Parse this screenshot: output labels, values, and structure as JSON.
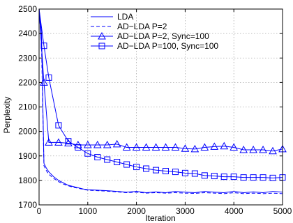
{
  "chart_data": {
    "type": "line",
    "title": "",
    "xlabel": "Iteration",
    "ylabel": "Perplexity",
    "xlim": [
      0,
      5000
    ],
    "ylim": [
      1700,
      2500
    ],
    "xticks": [
      0,
      1000,
      2000,
      3000,
      4000,
      5000
    ],
    "yticks": [
      1700,
      1800,
      1900,
      2000,
      2100,
      2200,
      2300,
      2400,
      2500
    ],
    "grid": true,
    "legend_position": "top-right",
    "colors": {
      "series": "#0000ff",
      "axis": "#000000",
      "grid": "#a8a8a8"
    },
    "series": [
      {
        "name": "LDA",
        "style": "solid",
        "marker": "none",
        "x": [
          0,
          50,
          100,
          150,
          200,
          300,
          400,
          500,
          600,
          700,
          800,
          900,
          1000,
          1200,
          1400,
          1600,
          1800,
          2000,
          2200,
          2400,
          2600,
          2800,
          3000,
          3200,
          3400,
          3600,
          3800,
          4000,
          4200,
          4400,
          4600,
          4800,
          5000
        ],
        "y": [
          2500,
          2400,
          1870,
          1850,
          1835,
          1815,
          1800,
          1790,
          1780,
          1775,
          1770,
          1765,
          1762,
          1760,
          1758,
          1755,
          1752,
          1755,
          1750,
          1753,
          1750,
          1755,
          1752,
          1750,
          1755,
          1752,
          1750,
          1755,
          1750,
          1753,
          1750,
          1755,
          1752
        ]
      },
      {
        "name": "AD−LDA P=2",
        "style": "dashed",
        "marker": "none",
        "x": [
          0,
          50,
          100,
          150,
          200,
          300,
          400,
          500,
          600,
          700,
          800,
          900,
          1000,
          1200,
          1400,
          1600,
          1800,
          2000,
          2200,
          2400,
          2600,
          2800,
          3000,
          3200,
          3400,
          3600,
          3800,
          4000,
          4200,
          4400,
          4600,
          4800,
          5000
        ],
        "y": [
          2500,
          2350,
          1860,
          1840,
          1825,
          1808,
          1795,
          1785,
          1778,
          1772,
          1768,
          1764,
          1760,
          1758,
          1756,
          1753,
          1750,
          1752,
          1748,
          1750,
          1748,
          1750,
          1748,
          1747,
          1750,
          1748,
          1746,
          1750,
          1746,
          1748,
          1746,
          1748,
          1746
        ]
      },
      {
        "name": "AD−LDA P=2, Sync=100",
        "style": "solid",
        "marker": "triangle",
        "x": [
          0,
          100,
          200,
          400,
          600,
          800,
          1000,
          1200,
          1400,
          1600,
          1800,
          2000,
          2200,
          2400,
          2600,
          2800,
          3000,
          3200,
          3400,
          3600,
          3800,
          4000,
          4200,
          4400,
          4600,
          4800,
          5000
        ],
        "y": [
          2500,
          2200,
          1955,
          1955,
          1952,
          1945,
          1945,
          1945,
          1945,
          1948,
          1935,
          1935,
          1935,
          1935,
          1935,
          1935,
          1930,
          1928,
          1935,
          1938,
          1940,
          1935,
          1925,
          1925,
          1925,
          1920,
          1928
        ]
      },
      {
        "name": "AD−LDA P=100, Sync=100",
        "style": "solid",
        "marker": "square",
        "x": [
          0,
          100,
          200,
          400,
          600,
          800,
          1000,
          1200,
          1400,
          1600,
          1800,
          2000,
          2200,
          2400,
          2600,
          2800,
          3000,
          3200,
          3400,
          3600,
          3800,
          4000,
          4200,
          4400,
          4600,
          4800,
          5000
        ],
        "y": [
          2500,
          2350,
          2220,
          2025,
          1960,
          1935,
          1910,
          1895,
          1885,
          1875,
          1865,
          1855,
          1848,
          1842,
          1838,
          1835,
          1830,
          1828,
          1820,
          1818,
          1815,
          1815,
          1812,
          1812,
          1812,
          1810,
          1812
        ]
      }
    ]
  }
}
